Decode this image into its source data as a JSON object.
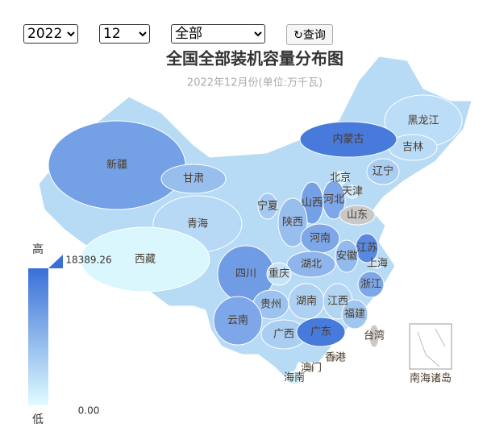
{
  "filters": {
    "year": "2022",
    "month": "12",
    "type": "全部",
    "button": "查询"
  },
  "title": "全国全部装机容量分布图",
  "subtitle": "2022年12月份(单位:万千瓦)",
  "inset_label": "南海诸岛",
  "visual_map": {
    "high_text": "高",
    "low_text": "低",
    "range": [
      {
        "value": 0,
        "label": "0.00"
      },
      18389.26
    ],
    "low_color": "#e0fbff",
    "high_color": "#3a6fd8",
    "null_color": "#c8c8c8"
  },
  "regions": [
    {
      "name": "黑龙江",
      "value": 4000
    },
    {
      "name": "吉林",
      "value": 4200
    },
    {
      "name": "内蒙古",
      "value": 17000
    },
    {
      "name": "辽宁",
      "value": 6000
    },
    {
      "name": "新疆",
      "value": 12000
    },
    {
      "name": "甘肃",
      "value": 8000
    },
    {
      "name": "北京",
      "value": 1300
    },
    {
      "name": "天津",
      "value": 2500
    },
    {
      "name": "河北",
      "value": 11000
    },
    {
      "name": "山西",
      "value": 12000
    },
    {
      "name": "宁夏",
      "value": 6500
    },
    {
      "name": "山东",
      "value": null
    },
    {
      "name": "青海",
      "value": 4500
    },
    {
      "name": "陕西",
      "value": 8000
    },
    {
      "name": "河南",
      "value": 11000
    },
    {
      "name": "西藏",
      "value": 500
    },
    {
      "name": "江苏",
      "value": 15000
    },
    {
      "name": "安徽",
      "value": 8500
    },
    {
      "name": "上海",
      "value": 2700
    },
    {
      "name": "湖北",
      "value": 9000
    },
    {
      "name": "四川",
      "value": 12500
    },
    {
      "name": "重庆",
      "value": 3000
    },
    {
      "name": "浙江",
      "value": 11000
    },
    {
      "name": "贵州",
      "value": 7500
    },
    {
      "name": "湖南",
      "value": 5500
    },
    {
      "name": "江西",
      "value": 5000
    },
    {
      "name": "福建",
      "value": 7000
    },
    {
      "name": "云南",
      "value": 11000
    },
    {
      "name": "广西",
      "value": 6000
    },
    {
      "name": "广东",
      "value": 17000
    },
    {
      "name": "台湾",
      "value": null
    },
    {
      "name": "香港",
      "value": null
    },
    {
      "name": "澳门",
      "value": null
    },
    {
      "name": "海南",
      "value": 1200
    }
  ]
}
